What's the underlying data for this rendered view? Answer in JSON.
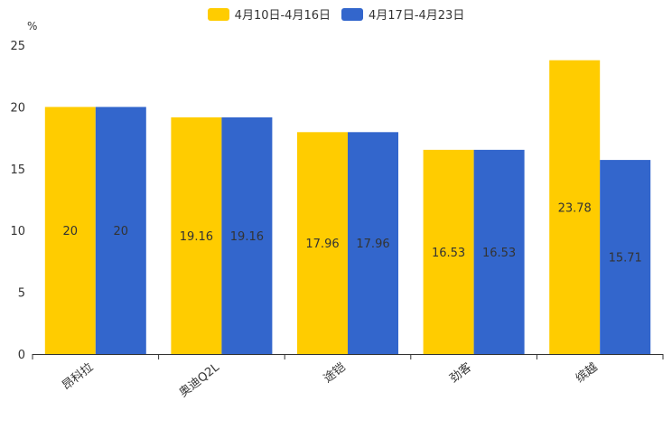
{
  "chart_data": {
    "type": "bar",
    "unit": "%",
    "categories": [
      "昂科拉",
      "奥迪Q2L",
      "途铠",
      "劲客",
      "缤越"
    ],
    "series": [
      {
        "name": "4月10日-4月16日",
        "color": "#ffcc00",
        "values": [
          20,
          19.16,
          17.96,
          16.53,
          23.78
        ]
      },
      {
        "name": "4月17日-4月23日",
        "color": "#3366cc",
        "values": [
          20,
          19.16,
          17.96,
          16.53,
          15.71
        ]
      }
    ],
    "ylim": [
      0,
      25
    ],
    "yticks": [
      0,
      5,
      10,
      15,
      20,
      25
    ],
    "legend_position": "top-center",
    "grid": false
  }
}
